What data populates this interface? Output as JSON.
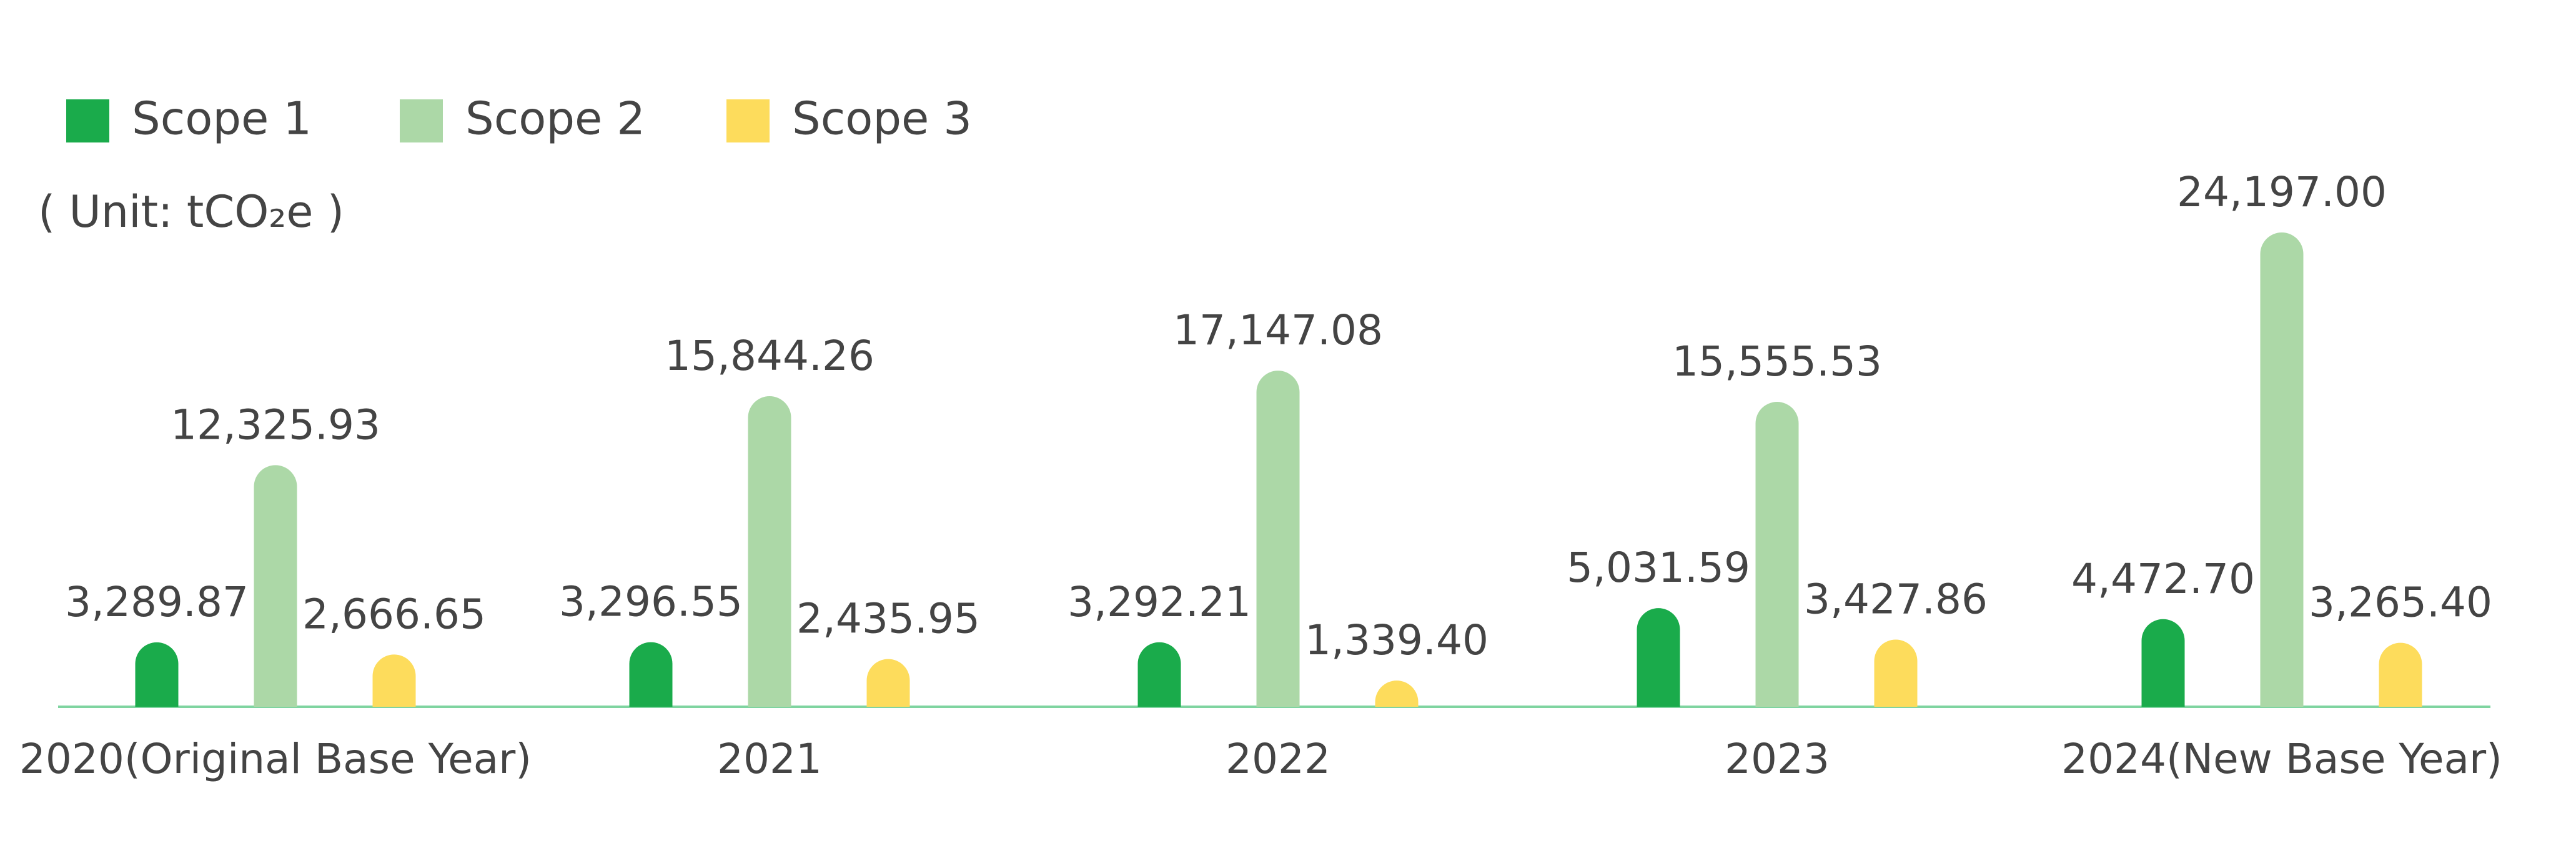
{
  "chart_data": {
    "type": "bar",
    "y_axis_label": "( Unit: tCO₂e )",
    "categories": [
      "2020(Original Base Year)",
      "2021",
      "2022",
      "2023",
      "2024(New Base Year)"
    ],
    "series": [
      {
        "name": "Scope 1",
        "color": "#1aab4b",
        "values": [
          3289.87,
          3296.55,
          3292.21,
          5031.59,
          4472.7
        ],
        "value_labels": [
          "3,289.87",
          "3,296.55",
          "3,292.21",
          "5,031.59",
          "4,472.70"
        ]
      },
      {
        "name": "Scope 2",
        "color": "#acd8a7",
        "values": [
          12325.93,
          15844.26,
          17147.08,
          15555.53,
          24197.0
        ],
        "value_labels": [
          "12,325.93",
          "15,844.26",
          "17,147.08",
          "15,555.53",
          "24,197.00"
        ]
      },
      {
        "name": "Scope 3",
        "color": "#fddc5c",
        "values": [
          2666.65,
          2435.95,
          1339.4,
          3427.86,
          3265.4
        ],
        "value_labels": [
          "2,666.65",
          "2,435.95",
          "1,339.40",
          "3,427.86",
          "3,265.40"
        ]
      }
    ],
    "legend": "top-left",
    "grid": false
  }
}
